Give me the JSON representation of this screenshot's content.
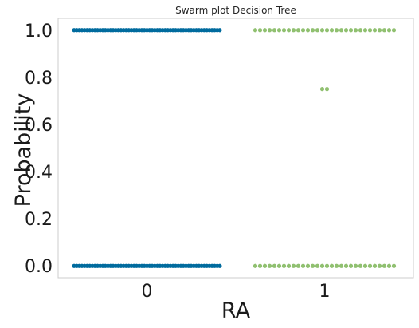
{
  "chart_data": {
    "type": "scatter",
    "subtype": "swarm",
    "title": "Swarm plot Decision Tree",
    "xlabel": "RA",
    "ylabel": "Probability",
    "categories": [
      "0",
      "1"
    ],
    "ylim": [
      -0.05,
      1.05
    ],
    "yticks": [
      "0.0",
      "0.2",
      "0.4",
      "0.6",
      "0.8",
      "1.0"
    ],
    "grid": false,
    "colors": {
      "0": "#006b9e",
      "1": "#90c070"
    },
    "groups": [
      {
        "category": "0",
        "clusters": [
          {
            "value": 1.0,
            "count": 57
          },
          {
            "value": 0.0,
            "count": 57
          }
        ]
      },
      {
        "category": "1",
        "clusters": [
          {
            "value": 1.0,
            "count": 30
          },
          {
            "value": 0.75,
            "count": 2
          },
          {
            "value": 0.0,
            "count": 30
          }
        ]
      }
    ]
  }
}
